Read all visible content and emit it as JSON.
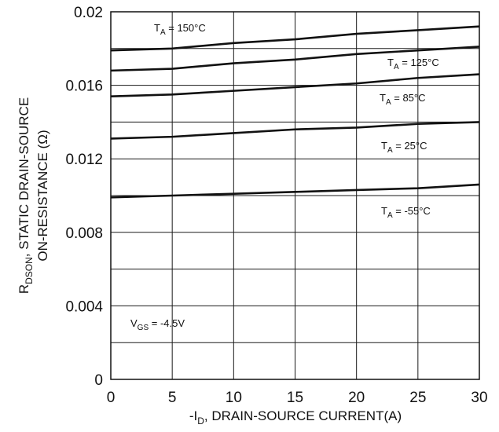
{
  "chart_data": {
    "type": "line",
    "title": "",
    "xlabel": {
      "prefix": "-I",
      "sub": "D",
      "suffix": ", DRAIN-SOURCE CURRENT(A)"
    },
    "ylabel": {
      "line1_prefix": "R",
      "line1_sub": "DSON",
      "line1_suffix": ",  STATIC DRAIN-SOURCE",
      "line2": "ON-RESISTANCE (Ω)"
    },
    "xlim": [
      0,
      30
    ],
    "ylim": [
      0,
      0.02
    ],
    "x_ticks": [
      "0",
      "5",
      "10",
      "15",
      "20",
      "25",
      "30"
    ],
    "y_ticks": [
      "0",
      "0.004",
      "0.008",
      "0.012",
      "0.016",
      "0.02"
    ],
    "grid": true,
    "x": [
      0,
      5,
      10,
      15,
      20,
      25,
      30
    ],
    "series": [
      {
        "name": "T_A = 150°C",
        "label_main": "T",
        "label_sub": "A",
        "label_rest": " = 150°C",
        "values": [
          0.0179,
          0.018,
          0.0183,
          0.0185,
          0.0188,
          0.019,
          0.0192
        ]
      },
      {
        "name": "T_A = 125°C",
        "label_main": "T",
        "label_sub": "A",
        "label_rest": " = 125°C",
        "values": [
          0.0168,
          0.0169,
          0.0172,
          0.0174,
          0.0177,
          0.0179,
          0.0181
        ]
      },
      {
        "name": "T_A = 85°C",
        "label_main": "T",
        "label_sub": "A",
        "label_rest": " = 85°C",
        "values": [
          0.0154,
          0.0155,
          0.0157,
          0.0159,
          0.0161,
          0.0164,
          0.0166
        ]
      },
      {
        "name": "T_A = 25°C",
        "label_main": "T",
        "label_sub": "A",
        "label_rest": " = 25°C",
        "values": [
          0.0131,
          0.0132,
          0.0134,
          0.0136,
          0.0137,
          0.0139,
          0.014
        ]
      },
      {
        "name": "T_A = -55°C",
        "label_main": "T",
        "label_sub": "A",
        "label_rest": " = -55°C",
        "values": [
          0.0099,
          0.01,
          0.0101,
          0.0102,
          0.0103,
          0.0104,
          0.0106
        ]
      }
    ],
    "annotation": {
      "main": "V",
      "sub": "GS",
      "rest": " = -4.5V"
    },
    "colors": {
      "line": "#111111",
      "grid": "#1a1a1a",
      "background": "#ffffff"
    }
  }
}
